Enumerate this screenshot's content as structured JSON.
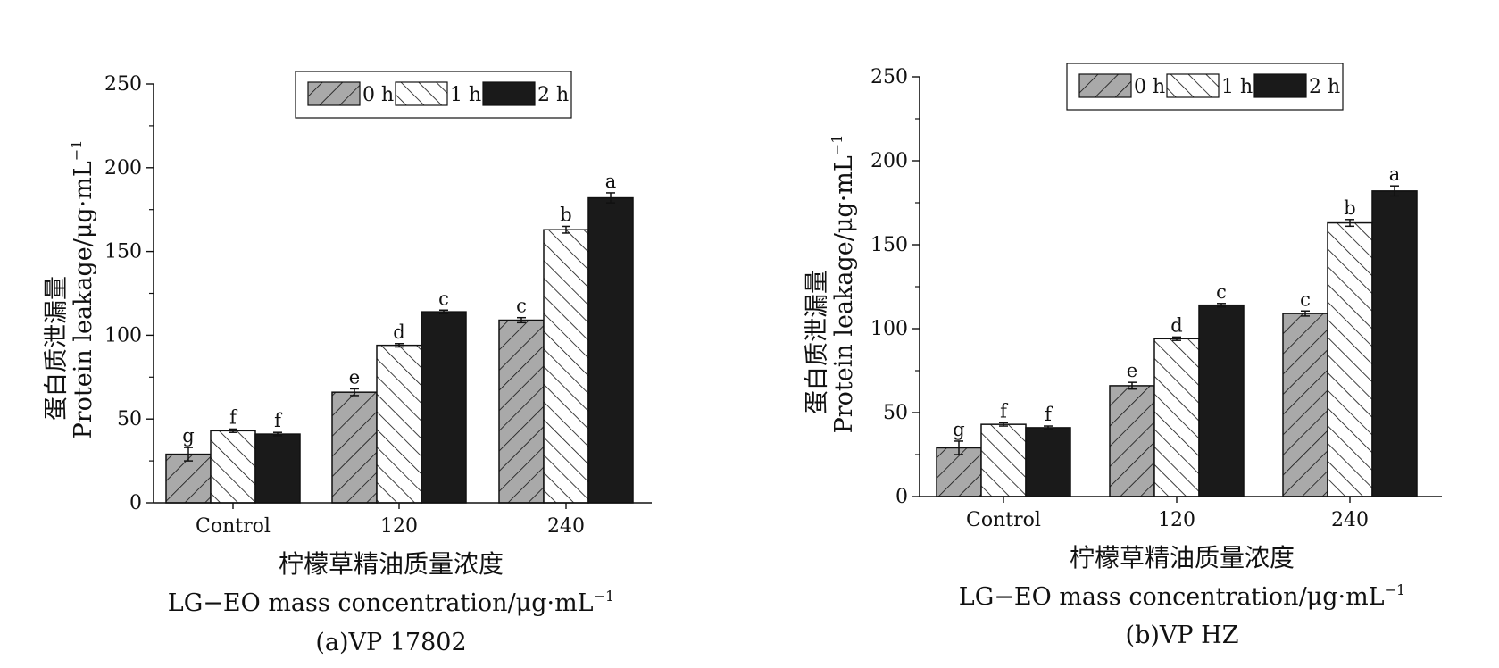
{
  "figure": {
    "y_title_cn": "蛋白质泄漏量",
    "y_title_en": "Protein leakage/μg·mL",
    "y_title_sup": "−1",
    "x_title_cn": "柠檬草精油质量浓度",
    "x_title_en": "LG−EO mass concentration/μg·mL",
    "x_title_sup": "−1"
  },
  "legend": [
    "0 h",
    "1 h",
    "2 h"
  ],
  "colors": {
    "h0": "#a9a9a9",
    "h1": "#ffffff",
    "h2": "#1a1a1a",
    "stroke": "#111111"
  },
  "chart_data": [
    {
      "type": "bar",
      "caption": "(a)VP 17802",
      "categories": [
        "Control",
        "120",
        "240"
      ],
      "ylim": [
        0,
        250
      ],
      "yticks": [
        0,
        50,
        100,
        150,
        200,
        250
      ],
      "legend_position": "top",
      "grid": false,
      "series": [
        {
          "name": "0 h",
          "values": [
            29,
            66,
            109
          ],
          "errors": [
            4,
            2,
            1.5
          ],
          "letters": [
            "g",
            "e",
            "c"
          ]
        },
        {
          "name": "1 h",
          "values": [
            43,
            94,
            163
          ],
          "errors": [
            1,
            1,
            2
          ],
          "letters": [
            "f",
            "d",
            "b"
          ]
        },
        {
          "name": "2 h",
          "values": [
            41,
            114,
            182
          ],
          "errors": [
            1,
            1,
            3
          ],
          "letters": [
            "f",
            "c",
            "a"
          ]
        }
      ]
    },
    {
      "type": "bar",
      "caption": "(b)VP HZ",
      "categories": [
        "Control",
        "120",
        "240"
      ],
      "ylim": [
        0,
        250
      ],
      "yticks": [
        0,
        50,
        100,
        150,
        200,
        250
      ],
      "legend_position": "top",
      "grid": false,
      "series": [
        {
          "name": "0 h",
          "values": [
            29,
            66,
            109
          ],
          "errors": [
            4,
            2,
            1.5
          ],
          "letters": [
            "g",
            "e",
            "c"
          ]
        },
        {
          "name": "1 h",
          "values": [
            43,
            94,
            163
          ],
          "errors": [
            1,
            1,
            2
          ],
          "letters": [
            "f",
            "d",
            "b"
          ]
        },
        {
          "name": "2 h",
          "values": [
            41,
            114,
            182
          ],
          "errors": [
            1,
            1,
            3
          ],
          "letters": [
            "f",
            "c",
            "a"
          ]
        }
      ]
    }
  ]
}
